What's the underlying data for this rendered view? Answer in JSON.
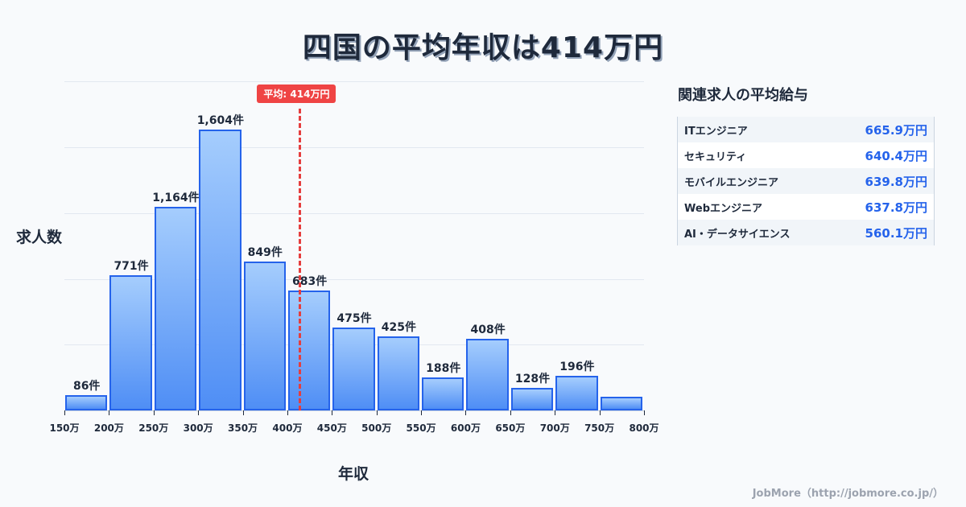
{
  "title": "四国の平均年収は414万円",
  "chart_data": {
    "type": "bar",
    "title": "四国の平均年収は414万円",
    "xlabel": "年収",
    "ylabel": "求人数",
    "bin_edges": [
      "150万",
      "200万",
      "250万",
      "300万",
      "350万",
      "400万",
      "450万",
      "500万",
      "550万",
      "600万",
      "650万",
      "700万",
      "750万",
      "800万"
    ],
    "categories": [
      "150-200万",
      "200-250万",
      "250-300万",
      "300-350万",
      "350-400万",
      "400-450万",
      "450-500万",
      "500-550万",
      "550-600万",
      "600-650万",
      "650-700万",
      "700-750万",
      "750-800万"
    ],
    "values": [
      86,
      771,
      1164,
      1604,
      849,
      683,
      475,
      425,
      188,
      408,
      128,
      196,
      78
    ],
    "labels": [
      "86件",
      "771件",
      "1,164件",
      "1,604件",
      "849件",
      "683件",
      "475件",
      "425件",
      "188件",
      "408件",
      "128件",
      "196件",
      ""
    ],
    "ylim": [
      0,
      1880
    ],
    "grid": true,
    "average": {
      "value": 414,
      "label": "平均: 414万円",
      "color": "#ef4444"
    },
    "bar_color": "#2563eb"
  },
  "related": {
    "title": "関連求人の平均給与",
    "items": [
      {
        "name": "ITエンジニア",
        "value": "665.9万円"
      },
      {
        "name": "セキュリティ",
        "value": "640.4万円"
      },
      {
        "name": "モバイルエンジニア",
        "value": "639.8万円"
      },
      {
        "name": "Webエンジニア",
        "value": "637.8万円"
      },
      {
        "name": "AI・データサイエンス",
        "value": "560.1万円"
      }
    ]
  },
  "footer": "JobMore（http://jobmore.co.jp/）"
}
